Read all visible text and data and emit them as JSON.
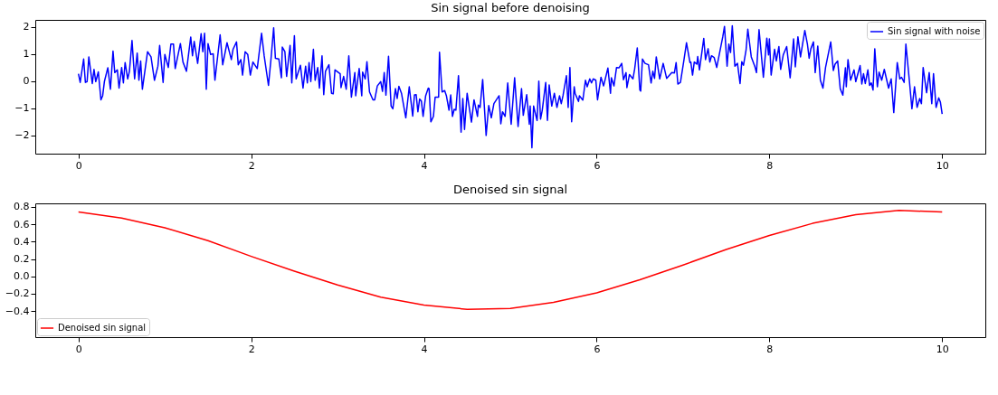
{
  "chart_data": [
    {
      "type": "line",
      "title": "Sin signal before denoising",
      "xlim": [
        -0.5,
        10.5
      ],
      "xticks": [
        0,
        2,
        4,
        6,
        8,
        10
      ],
      "ylim": [
        -2.67,
        2.25
      ],
      "yticks": [
        -2,
        -1,
        0,
        1,
        2
      ],
      "grid": false,
      "legend": "top right",
      "line_style": "solid",
      "series": [
        {
          "name": "Sin signal with noise",
          "color": "#0000ff",
          "x": [
            0,
            0.02,
            0.06,
            0.08,
            0.1,
            0.12,
            0.16,
            0.18,
            0.2,
            0.23,
            0.26,
            0.28,
            0.3,
            0.34,
            0.37,
            0.4,
            0.42,
            0.45,
            0.47,
            0.5,
            0.52,
            0.54,
            0.57,
            0.59,
            0.62,
            0.65,
            0.68,
            0.7,
            0.72,
            0.74,
            0.8,
            0.84,
            0.88,
            0.92,
            0.94,
            0.98,
            1.0,
            1.04,
            1.07,
            1.1,
            1.12,
            1.18,
            1.21,
            1.25,
            1.3,
            1.32,
            1.34,
            1.38,
            1.42,
            1.44,
            1.46,
            1.48,
            1.5,
            1.53,
            1.56,
            1.58,
            1.64,
            1.67,
            1.72,
            1.77,
            1.79,
            1.83,
            1.85,
            1.88,
            1.9,
            1.93,
            1.96,
            1.99,
            2.02,
            2.07,
            2.12,
            2.15,
            2.2,
            2.23,
            2.26,
            2.28,
            2.32,
            2.35,
            2.36,
            2.39,
            2.41,
            2.45,
            2.47,
            2.5,
            2.52,
            2.57,
            2.6,
            2.63,
            2.65,
            2.67,
            2.69,
            2.72,
            2.74,
            2.77,
            2.79,
            2.82,
            2.84,
            2.86,
            2.9,
            2.93,
            2.95,
            2.97,
            3.03,
            3.04,
            3.07,
            3.1,
            3.13,
            3.16,
            3.2,
            3.21,
            3.25,
            3.28,
            3.29,
            3.32,
            3.34,
            3.37,
            3.41,
            3.43,
            3.46,
            3.5,
            3.52,
            3.54,
            3.56,
            3.59,
            3.62,
            3.64,
            3.67,
            3.69,
            3.71,
            3.74,
            3.79,
            3.83,
            3.87,
            3.89,
            3.91,
            3.93,
            3.95,
            3.97,
            3.99,
            4.02,
            4.05,
            4.06,
            4.08,
            4.11,
            4.13,
            4.17,
            4.18,
            4.21,
            4.24,
            4.26,
            4.29,
            4.31,
            4.33,
            4.35,
            4.37,
            4.4,
            4.43,
            4.45,
            4.47,
            4.5,
            4.55,
            4.58,
            4.62,
            4.63,
            4.65,
            4.68,
            4.72,
            4.75,
            4.78,
            4.81,
            4.87,
            4.89,
            4.91,
            4.94,
            4.97,
            5.01,
            5.05,
            5.09,
            5.13,
            5.15,
            5.19,
            5.22,
            5.23,
            5.25,
            5.27,
            5.31,
            5.33,
            5.35,
            5.37,
            5.41,
            5.43,
            5.45,
            5.48,
            5.51,
            5.54,
            5.57,
            5.59,
            5.61,
            5.65,
            5.67,
            5.69,
            5.71,
            5.74,
            5.75,
            5.79,
            5.8,
            5.84,
            5.87,
            5.89,
            5.92,
            5.94,
            5.96,
            5.99,
            6.01,
            6.05,
            6.08,
            6.13,
            6.16,
            6.17,
            6.2,
            6.23,
            6.26,
            6.29,
            6.31,
            6.34,
            6.35,
            6.38,
            6.42,
            6.44,
            6.47,
            6.5,
            6.51,
            6.53,
            6.56,
            6.6,
            6.63,
            6.65,
            6.67,
            6.69,
            6.73,
            6.77,
            6.81,
            6.87,
            6.9,
            6.92,
            6.94,
            6.97,
            7.01,
            7.04,
            7.08,
            7.09,
            7.11,
            7.13,
            7.16,
            7.17,
            7.19,
            7.24,
            7.26,
            7.29,
            7.31,
            7.33,
            7.36,
            7.39,
            7.46,
            7.48,
            7.51,
            7.53,
            7.55,
            7.57,
            7.6,
            7.63,
            7.66,
            7.68,
            7.7,
            7.73,
            7.75,
            7.79,
            7.83,
            7.85,
            7.88,
            7.93,
            7.97,
            7.99,
            8.0,
            8.02,
            8.06,
            8.08,
            8.11,
            8.13,
            8.16,
            8.2,
            8.24,
            8.28,
            8.3,
            8.33,
            8.36,
            8.41,
            8.44,
            8.46,
            8.48,
            8.51,
            8.53,
            8.56,
            8.59,
            8.62,
            8.65,
            8.71,
            8.74,
            8.76,
            8.79,
            8.82,
            8.85,
            8.88,
            8.89,
            8.91,
            8.94,
            8.98,
            9.0,
            9.05,
            9.07,
            9.09,
            9.11,
            9.14,
            9.16,
            9.18,
            9.2,
            9.22,
            9.25,
            9.27,
            9.3,
            9.33,
            9.38,
            9.41,
            9.44,
            9.48,
            9.51,
            9.53,
            9.56,
            9.58,
            9.62,
            9.65,
            9.68,
            9.71,
            9.74,
            9.76,
            9.78,
            9.82,
            9.85,
            9.88,
            9.9,
            9.93,
            9.96,
            9.98,
            10.0
          ],
          "values": [
            0.27,
            -0.05,
            0.81,
            -0.05,
            -0.02,
            0.89,
            -0.09,
            0.43,
            -0.02,
            0.34,
            -0.69,
            -0.54,
            -0.02,
            0.49,
            -0.3,
            1.1,
            0.31,
            0.41,
            -0.26,
            0.5,
            -0.07,
            0.68,
            0.08,
            0.36,
            1.49,
            0.08,
            1.03,
            0.03,
            0.74,
            -0.3,
            1.08,
            0.89,
            0.03,
            0.55,
            1.31,
            -0.05,
            0.98,
            0.5,
            1.36,
            1.36,
            0.46,
            1.38,
            0.7,
            0.36,
            1.62,
            0.93,
            1.46,
            0.65,
            1.74,
            1.08,
            1.76,
            -0.3,
            1.38,
            0.98,
            1.0,
            0.03,
            1.7,
            0.6,
            1.41,
            0.79,
            1.17,
            1.44,
            0.6,
            0.79,
            0.22,
            1.08,
            0.98,
            0.22,
            0.7,
            0.46,
            1.76,
            0.93,
            -0.16,
            0.84,
            1.96,
            0.84,
            0.81,
            0.12,
            1.25,
            1.08,
            0.17,
            1.31,
            -0.07,
            1.67,
            0.08,
            0.58,
            -0.26,
            0.55,
            -0.07,
            0.68,
            -0.02,
            1.17,
            0.03,
            0.5,
            -0.26,
            0.93,
            -0.5,
            0.36,
            0.6,
            -0.45,
            -0.47,
            0.41,
            0.27,
            -0.24,
            0.17,
            -0.3,
            0.93,
            -0.59,
            0.31,
            -0.54,
            0.46,
            -0.54,
            0.33,
            0.08,
            0.71,
            -0.4,
            -0.69,
            -0.69,
            -0.18,
            -0.02,
            -0.38,
            0.31,
            -0.52,
            0.91,
            -0.92,
            -1.02,
            -0.28,
            -0.64,
            -0.19,
            -0.45,
            -1.35,
            -0.21,
            -1.29,
            -0.51,
            -0.5,
            -1.13,
            -0.66,
            -0.73,
            -1.3,
            -0.54,
            -0.26,
            -0.28,
            -1.5,
            -1.3,
            -0.59,
            -0.59,
            1.06,
            -0.4,
            -0.35,
            -0.54,
            -1.07,
            -0.51,
            -1.3,
            -1.04,
            -1.07,
            0.2,
            -1.88,
            -0.64,
            -1.78,
            -0.45,
            -1.51,
            -0.69,
            -1.3,
            -0.88,
            -0.97,
            0.06,
            -2.0,
            -0.9,
            -1.35,
            -0.83,
            -0.54,
            -1.57,
            -1.13,
            -1.3,
            -0.07,
            -1.59,
            0.12,
            -1.67,
            -0.28,
            -1.26,
            -0.5,
            -1.59,
            -0.92,
            -2.45,
            -0.92,
            -1.45,
            0.0,
            -1.4,
            -1.07,
            -0.05,
            -1.45,
            -0.14,
            -0.92,
            -0.45,
            -0.97,
            -0.54,
            -0.83,
            -0.54,
            0.2,
            -0.97,
            0.5,
            -1.5,
            -0.21,
            -0.45,
            -0.75,
            -0.54,
            -0.7,
            0.03,
            -0.21,
            0.08,
            -0.07,
            0.08,
            0.03,
            -0.69,
            0.14,
            -0.18,
            0.48,
            -0.45,
            0.12,
            -0.18,
            0.5,
            0.49,
            0.65,
            0.05,
            0.31,
            -0.24,
            0.24,
            0.08,
            0.45,
            1.22,
            -0.33,
            -0.37,
            0.81,
            0.65,
            0.6,
            -0.07,
            0.36,
            0.1,
            0.89,
            0.08,
            0.65,
            0.1,
            0.31,
            0.3,
            0.68,
            -0.11,
            -0.05,
            0.77,
            1.41,
            0.68,
            0.7,
            0.22,
            0.7,
            0.62,
            0.9,
            0.41,
            1.57,
            0.79,
            1.19,
            0.7,
            0.93,
            0.87,
            0.5,
            1.63,
            2.01,
            0.55,
            1.36,
            1.05,
            2.03,
            0.55,
            0.65,
            -0.09,
            0.71,
            0.58,
            1.15,
            1.91,
            0.89,
            0.55,
            0.31,
            1.89,
            0.14,
            1.58,
            0.96,
            1.55,
            0.22,
            1.17,
            0.74,
            1.27,
            0.43,
            0.96,
            1.27,
            0.12,
            1.55,
            0.52,
            1.63,
            0.89,
            1.86,
            1.36,
            0.84,
            1.19,
            1.44,
            0.31,
            1.29,
            0.03,
            -0.26,
            0.5,
            1.44,
            0.39,
            0.62,
            0.74,
            -0.28,
            -0.52,
            0.49,
            -0.21,
            0.79,
            0.03,
            0.41,
            -0.02,
            0.57,
            -0.11,
            0.27,
            -0.09,
            0.41,
            -0.16,
            -0.07,
            -0.33,
            1.19,
            -0.21,
            0.33,
            0.03,
            0.43,
            -0.26,
            0.08,
            -1.16,
            0.68,
            0.08,
            0.14,
            -0.05,
            1.36,
            0.03,
            -1.02,
            -0.21,
            -0.97,
            -0.64,
            -0.83,
            0.5,
            -0.43,
            0.31,
            -0.83,
            0.27,
            -0.97,
            -0.62,
            -0.78,
            -1.21
          ]
        }
      ]
    },
    {
      "type": "line",
      "title": "Denoised sin signal",
      "xlim": [
        -0.5,
        10.5
      ],
      "xticks": [
        0,
        2,
        4,
        6,
        8,
        10
      ],
      "ylim": [
        -0.7,
        0.84
      ],
      "yticks": [
        -0.4,
        -0.2,
        {
          "value": 0,
          "label": "0.0"
        },
        0.2,
        0.4,
        0.6,
        0.8
      ],
      "grid": false,
      "legend": "bottom left",
      "line_style": "solid",
      "series": [
        {
          "name": "Denoised sin signal",
          "color": "#ff0000",
          "x": [
            0,
            0.5,
            1,
            1.5,
            2,
            2.5,
            3,
            3.5,
            4,
            4.5,
            5,
            5.5,
            6,
            6.5,
            7,
            7.5,
            8,
            8.5,
            9,
            9.5,
            10
          ],
          "values": [
            0.74,
            0.67,
            0.56,
            0.41,
            0.23,
            0.06,
            -0.1,
            -0.24,
            -0.33,
            -0.38,
            -0.37,
            -0.3,
            -0.19,
            -0.04,
            0.13,
            0.31,
            0.47,
            0.61,
            0.71,
            0.76,
            0.74
          ]
        }
      ]
    }
  ]
}
